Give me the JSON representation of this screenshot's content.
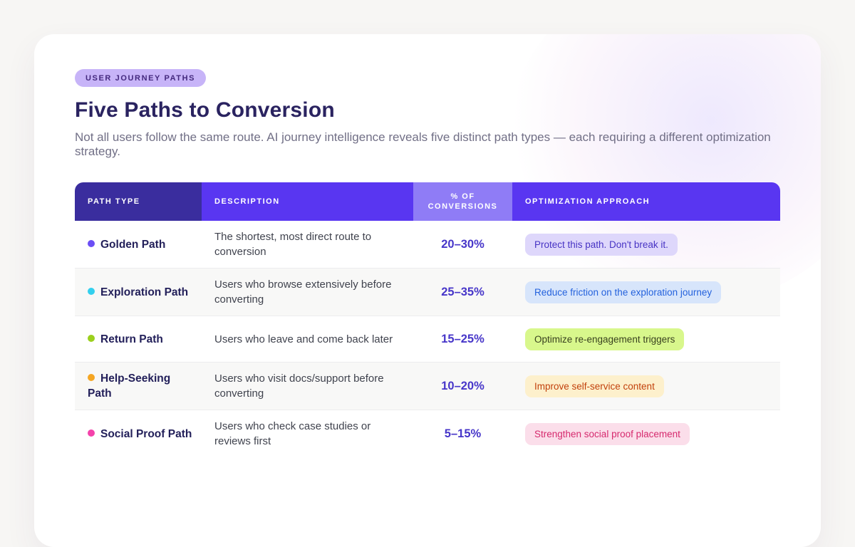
{
  "page": {
    "eyebrow": "USER JOURNEY PATHS",
    "title": "Five Paths to Conversion",
    "subtitle": "Not all users follow the same route. AI journey intelligence reveals five distinct path types — each requiring a different optimization strategy."
  },
  "colors": {
    "page_background": "#f7f6f4",
    "card_background": "#ffffff",
    "header_dark": "#3a2d9e",
    "header_bright": "#5936f1",
    "header_light": "#8f7cf6",
    "eyebrow_bg": "#c7b4f8",
    "percent_text": "#4736c9"
  },
  "table": {
    "columns": {
      "path_type": "PATH TYPE",
      "description": "DESCRIPTION",
      "conversions": "% OF CONVERSIONS",
      "approach": "OPTIMIZATION APPROACH"
    },
    "rows": [
      {
        "path": "Golden Path",
        "dot_color": "#6b4ef5",
        "description": "The shortest, most direct route to conversion",
        "conversions": "20–30%",
        "approach": "Protect this path. Don't break it.",
        "badge_bg": "#ded7fb",
        "badge_color": "#4733c4"
      },
      {
        "path": "Exploration Path",
        "dot_color": "#33d0ee",
        "description": "Users who browse extensively before converting",
        "conversions": "25–35%",
        "approach": "Reduce friction on the exploration journey",
        "badge_bg": "#d7e5fb",
        "badge_color": "#2462dd"
      },
      {
        "path": "Return Path",
        "dot_color": "#9bd01d",
        "description": "Users who leave and come back later",
        "conversions": "15–25%",
        "approach": "Optimize re-engagement triggers",
        "badge_bg": "#d8f78c",
        "badge_color": "#39411f"
      },
      {
        "path": "Help-Seeking Path",
        "dot_color": "#f5a623",
        "description": "Users who visit docs/support before converting",
        "conversions": "10–20%",
        "approach": "Improve self-service content",
        "badge_bg": "#fdf0cc",
        "badge_color": "#c2410c"
      },
      {
        "path": "Social Proof Path",
        "dot_color": "#f442ab",
        "description": "Users who check case studies or reviews first",
        "conversions": "5–15%",
        "approach": "Strengthen social proof placement",
        "badge_bg": "#fbdeea",
        "badge_color": "#d62a6e"
      }
    ]
  }
}
